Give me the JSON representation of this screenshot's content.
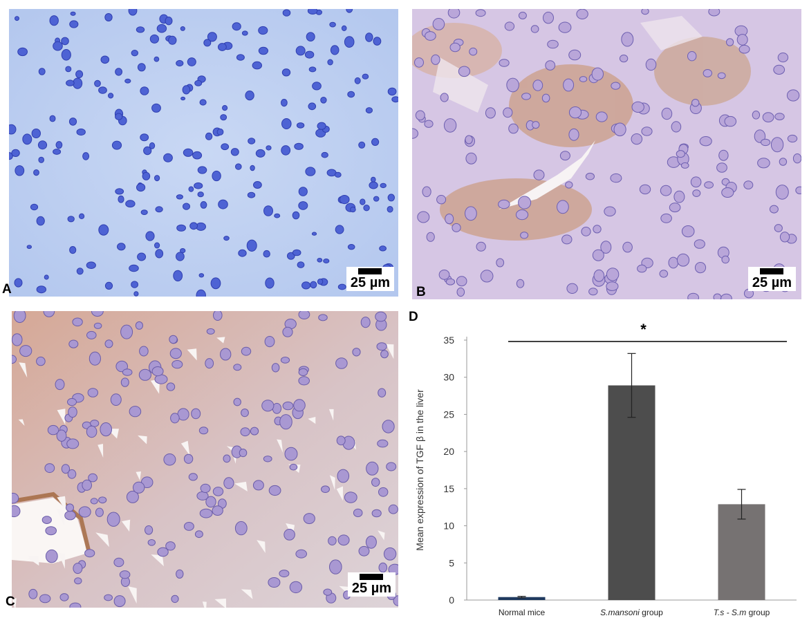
{
  "panels": {
    "A": {
      "letter": "A",
      "scale_label": "25 µm"
    },
    "B": {
      "letter": "B",
      "scale_label": "25 µm"
    },
    "C": {
      "letter": "C",
      "scale_label": "25 µm"
    },
    "D": {
      "letter": "D"
    }
  },
  "chart_data": {
    "type": "bar",
    "panel": "D",
    "categories": [
      "Normal mice",
      "S.mansoni group",
      "T.s - S.m group"
    ],
    "category_parts": [
      [
        {
          "text": "Normal mice",
          "italic": false
        }
      ],
      [
        {
          "text": "S.mansoni",
          "italic": true
        },
        {
          "text": " group",
          "italic": false
        }
      ],
      [
        {
          "text": "T.s - S.m",
          "italic": true
        },
        {
          "text": " group",
          "italic": false
        }
      ]
    ],
    "values": [
      0.4,
      28.9,
      12.9
    ],
    "errors": [
      0.1,
      4.3,
      2.0
    ],
    "colors": [
      "#1f3a5f",
      "#4d4d4d",
      "#767272"
    ],
    "ylabel": "Mean expression of TGF β in the liver",
    "xlabel": "",
    "ylim": [
      0,
      35
    ],
    "yticks": [
      0,
      5,
      10,
      15,
      20,
      25,
      30,
      35
    ],
    "grid": false,
    "significance_label": "*"
  }
}
